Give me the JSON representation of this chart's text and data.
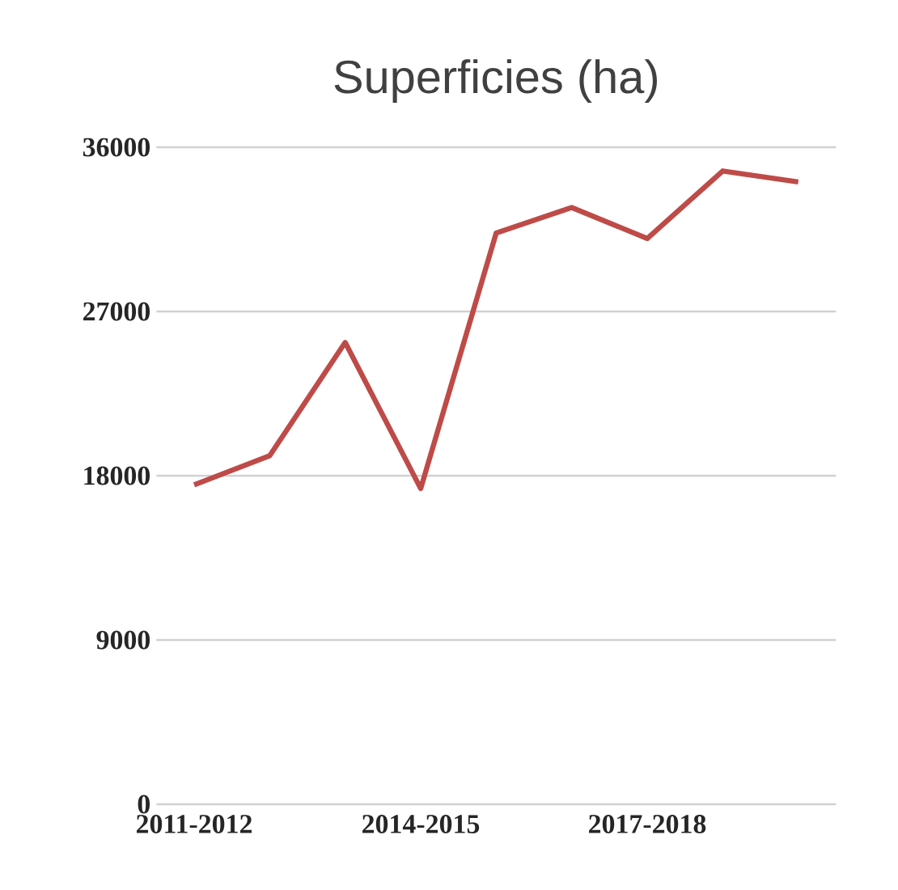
{
  "chart_data": {
    "type": "line",
    "title": "Superficies (ha)",
    "categories": [
      "2011-2012",
      null,
      null,
      "2014-2015",
      null,
      null,
      "2017-2018",
      null,
      null
    ],
    "series": [
      {
        "color": "#be4b48",
        "values": [
          17500,
          19100,
          25300,
          17300,
          31300,
          32700,
          31000,
          34700,
          34100
        ]
      }
    ],
    "ylim": [
      0,
      36000
    ],
    "yticks": [
      0,
      9000,
      18000,
      27000,
      36000
    ],
    "grid": "y",
    "marker": "none",
    "line_style": "solid"
  }
}
